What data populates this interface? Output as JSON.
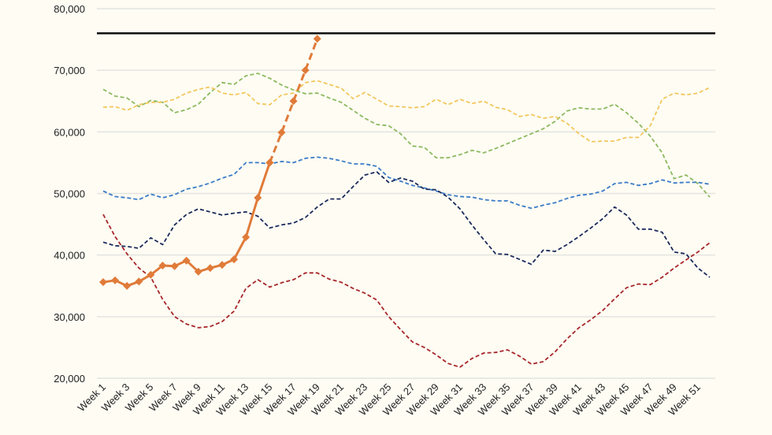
{
  "chart_data": {
    "type": "line",
    "title": "",
    "xlabel": "",
    "ylabel": "",
    "ylim": [
      20000,
      80000
    ],
    "yticks": [
      "20,000",
      "30,000",
      "40,000",
      "50,000",
      "60,000",
      "70,000",
      "80,000"
    ],
    "ytick_values": [
      20000,
      30000,
      40000,
      50000,
      60000,
      70000,
      80000
    ],
    "grid": true,
    "reference_line": {
      "value": 76000,
      "color": "#111111"
    },
    "x_tick_labels": [
      "Week 1",
      "Week 3",
      "Week 5",
      "Week 7",
      "Week 9",
      "Week 11",
      "Week 13",
      "Week 15",
      "Week 17",
      "Week 19",
      "Week 21",
      "Week 23",
      "Week 25",
      "Week 27",
      "Week 29",
      "Week 31",
      "Week 33",
      "Week 35",
      "Week 37",
      "Week 39",
      "Week 41",
      "Week 43",
      "Week 45",
      "Week 47",
      "Week 49",
      "Week 51"
    ],
    "weeks": 52,
    "series": [
      {
        "name": "green",
        "color": "#8db960",
        "style": "dashed",
        "start_week": 1,
        "values": [
          66900,
          65800,
          65500,
          64100,
          65100,
          64800,
          63100,
          63600,
          64500,
          66400,
          68000,
          67700,
          69100,
          69500,
          68700,
          67600,
          66800,
          66200,
          66300,
          65500,
          64800,
          63500,
          62200,
          61200,
          61000,
          59700,
          57700,
          57500,
          55800,
          55800,
          56300,
          57000,
          56600,
          57300,
          58100,
          58900,
          59700,
          60500,
          61700,
          63400,
          63900,
          63700,
          63700,
          64500,
          63100,
          61400,
          59300,
          56600,
          52400,
          53000,
          51600,
          49400
        ]
      },
      {
        "name": "yellow",
        "color": "#f2c75c",
        "style": "dashed",
        "start_week": 1,
        "values": [
          64000,
          64100,
          63500,
          64400,
          64800,
          64800,
          65300,
          66300,
          66900,
          67300,
          66300,
          66000,
          66400,
          64600,
          64400,
          66000,
          66300,
          68000,
          68300,
          67700,
          67100,
          65400,
          66400,
          65300,
          64200,
          64100,
          63900,
          64100,
          65300,
          64400,
          65300,
          64600,
          65000,
          64000,
          63600,
          62500,
          62800,
          62200,
          62500,
          61400,
          59700,
          58400,
          58500,
          58500,
          59100,
          59100,
          61000,
          65300,
          66300,
          66000,
          66300,
          67200
        ]
      },
      {
        "name": "blue",
        "color": "#3a7bc8",
        "style": "dashed",
        "start_week": 1,
        "values": [
          50400,
          49500,
          49300,
          49000,
          49900,
          49300,
          49800,
          50700,
          51100,
          51700,
          52500,
          53100,
          55000,
          55000,
          54800,
          55200,
          55000,
          55700,
          55900,
          55700,
          55300,
          54800,
          54800,
          54400,
          52600,
          52000,
          51300,
          50900,
          50400,
          49800,
          49500,
          49400,
          49000,
          48800,
          48800,
          48100,
          47600,
          48100,
          48500,
          49200,
          49700,
          49900,
          50400,
          51600,
          51800,
          51300,
          51600,
          52200,
          51700,
          51800,
          51800,
          51500
        ]
      },
      {
        "name": "navy",
        "color": "#1b2a5c",
        "style": "dashed",
        "start_week": 1,
        "values": [
          42100,
          41500,
          41400,
          41100,
          42800,
          41700,
          44900,
          46600,
          47500,
          47000,
          46500,
          46800,
          47000,
          46300,
          44400,
          44900,
          45200,
          46100,
          47800,
          49100,
          49100,
          51100,
          53000,
          53500,
          51800,
          52500,
          52000,
          50700,
          50600,
          49400,
          47500,
          44900,
          42500,
          40200,
          40100,
          39300,
          38500,
          40800,
          40600,
          41700,
          43000,
          44400,
          45900,
          47800,
          46500,
          44200,
          44200,
          43700,
          40500,
          40200,
          37900,
          36400
        ]
      },
      {
        "name": "red",
        "color": "#a8262a",
        "style": "dashed",
        "start_week": 1,
        "values": [
          46600,
          43000,
          40200,
          37900,
          36400,
          32800,
          30000,
          28800,
          28200,
          28400,
          29200,
          30900,
          34600,
          36000,
          34800,
          35500,
          36000,
          37100,
          37100,
          36100,
          35600,
          34600,
          33800,
          32700,
          30000,
          27900,
          25900,
          25000,
          23800,
          22400,
          21800,
          23200,
          24100,
          24200,
          24600,
          23600,
          22300,
          22700,
          24300,
          26400,
          28200,
          29500,
          31000,
          32900,
          34700,
          35300,
          35200,
          36400,
          37900,
          39200,
          40500,
          42000
        ]
      },
      {
        "name": "orange-actual",
        "color": "#e07b39",
        "style": "solid-markers",
        "start_week": 1,
        "values": [
          35600,
          35900,
          35000,
          35700,
          36800,
          38300,
          38200,
          39100,
          37300,
          37900,
          38400,
          39300,
          42900,
          49300,
          55000
        ]
      },
      {
        "name": "orange-projection",
        "color": "#e07b39",
        "style": "dashed-markers",
        "start_week": 15,
        "values": [
          55000,
          59900,
          65000,
          70000,
          75100
        ]
      }
    ]
  }
}
